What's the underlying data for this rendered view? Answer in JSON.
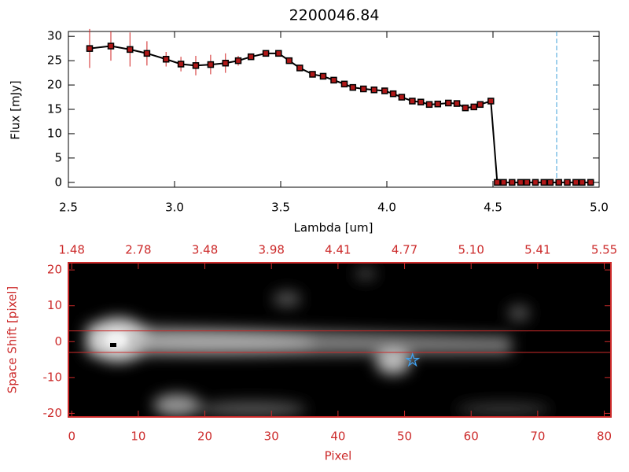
{
  "chart_data": [
    {
      "type": "line",
      "title": "2200046.84",
      "xlabel": "Lambda [um]",
      "ylabel": "Flux [mJy]",
      "x": [
        2.6,
        2.7,
        2.79,
        2.87,
        2.96,
        3.03,
        3.1,
        3.17,
        3.24,
        3.3,
        3.36,
        3.43,
        3.49,
        3.54,
        3.59,
        3.65,
        3.7,
        3.75,
        3.8,
        3.84,
        3.89,
        3.94,
        3.99,
        4.03,
        4.07,
        4.12,
        4.16,
        4.2,
        4.24,
        4.29,
        4.33,
        4.37,
        4.41,
        4.44,
        4.49,
        4.52,
        4.55,
        4.59,
        4.63,
        4.66,
        4.7,
        4.74,
        4.77,
        4.81,
        4.85,
        4.89,
        4.92,
        4.96
      ],
      "values": [
        27.5,
        28,
        27.3,
        26.5,
        25.3,
        24.3,
        24,
        24.2,
        24.5,
        25,
        25.8,
        26.5,
        26.5,
        25,
        23.5,
        22.2,
        21.8,
        21,
        20.2,
        19.5,
        19.2,
        19,
        18.8,
        18.2,
        17.5,
        16.7,
        16.5,
        16,
        16.1,
        16.3,
        16.2,
        15.3,
        15.5,
        16,
        16.7,
        0,
        0,
        0,
        0,
        0,
        0,
        0,
        0,
        0,
        0,
        0,
        0,
        0
      ],
      "errors": [
        4,
        3,
        3.5,
        2.5,
        1.5,
        1.5,
        2,
        2,
        2,
        1,
        0.5,
        0.3,
        0.3,
        0.3,
        0.3,
        0.3,
        0.3,
        0.3,
        0.3,
        0.3,
        0.3,
        0.3,
        0.3,
        0.3,
        0.3,
        0.3,
        0.3,
        0.3,
        0.3,
        0.3,
        0.3,
        0.3,
        0.3,
        0.3,
        0.3,
        0.3,
        0.3,
        0.3,
        0.3,
        0.3,
        0.3,
        0.3,
        0.3,
        0.3,
        0.3,
        0.3,
        0.3,
        0.3
      ],
      "color": "#000000",
      "marker_color": "#b01818",
      "error_color": "#d02020",
      "vline": 4.8,
      "vline_color": "#3fa0d8",
      "xlim": [
        2.5,
        5.0
      ],
      "ylim": [
        -1,
        31
      ],
      "xticks": [
        2.5,
        {
          "value": 3,
          "label": "3.0"
        },
        3.5,
        {
          "value": 4,
          "label": "4.0"
        },
        4.5,
        {
          "value": 5,
          "label": "5.0"
        }
      ],
      "yticks": [
        0,
        5,
        10,
        15,
        20,
        25,
        30
      ]
    },
    {
      "type": "image",
      "xlabel": "Pixel",
      "ylabel": "Space Shift [pixel]",
      "color": "#cc2a2a",
      "xlim": [
        -0.5,
        81
      ],
      "ylim": [
        -21,
        22
      ],
      "xticks": [
        0,
        10,
        20,
        30,
        40,
        50,
        60,
        70,
        80
      ],
      "yticks": [
        -20,
        -10,
        0,
        10,
        20
      ],
      "x2ticks": [
        {
          "value": 0,
          "label": "1.48"
        },
        {
          "value": 10,
          "label": "2.78"
        },
        {
          "value": 20,
          "label": "3.48"
        },
        {
          "value": 30,
          "label": "3.98"
        },
        {
          "value": 40,
          "label": "4.41"
        },
        {
          "value": 50,
          "label": "4.77"
        },
        {
          "value": 60,
          "label": "5.10"
        },
        {
          "value": 70,
          "label": "5.41"
        },
        {
          "value": 80,
          "label": "5.55"
        }
      ],
      "hlines": [
        3,
        -3
      ],
      "star": [
        51.2,
        -5.2
      ],
      "star_color": "#3fa0f0"
    }
  ]
}
